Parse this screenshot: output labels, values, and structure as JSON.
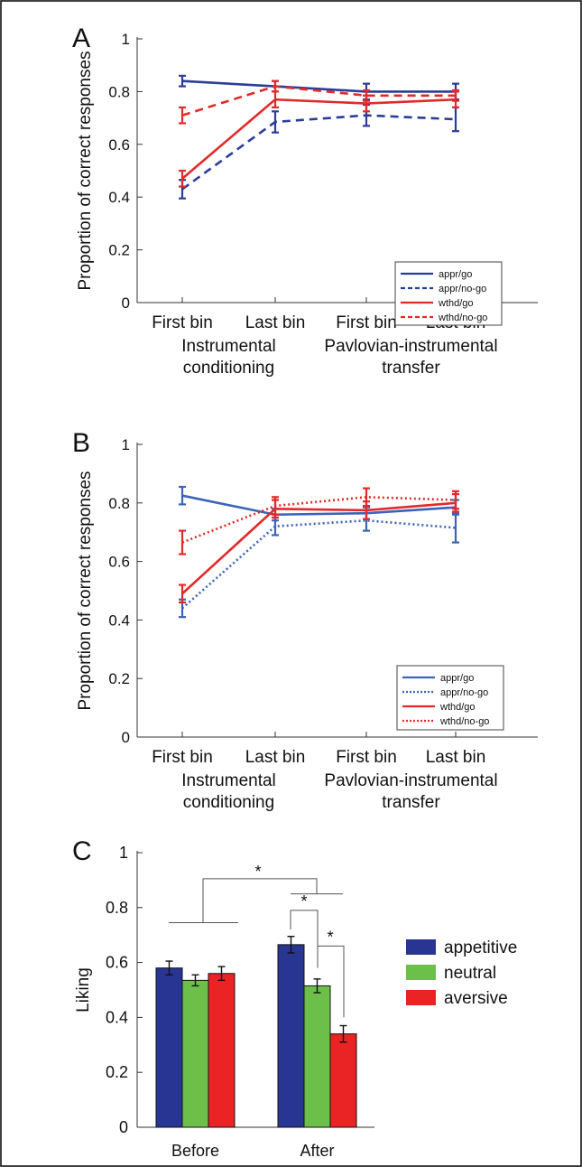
{
  "chart_data": [
    {
      "panel_label": "A",
      "type": "line",
      "ylabel": "Proportion of correct responses",
      "ylim": [
        0,
        1
      ],
      "yticks": [
        0,
        0.2,
        0.4,
        0.6,
        0.8,
        1
      ],
      "yticklabels": [
        "0",
        "0.2",
        "0.4",
        "0.6",
        "0.8",
        "1"
      ],
      "categories": [
        "First bin",
        "Last bin",
        "First bin",
        "Last bin"
      ],
      "groups": [
        {
          "label": "Instrumental\nconditioning"
        },
        {
          "label": "Pavlovian-instrumental\ntransfer"
        }
      ],
      "legend_position": "bottom-right",
      "series": [
        {
          "name": "appr/go",
          "color": "#2b3d9a",
          "style": "solid",
          "values": [
            0.84,
            0.82,
            0.8,
            0.8
          ],
          "errors": [
            0.02,
            0.02,
            0.03,
            0.03
          ]
        },
        {
          "name": "appr/no-go",
          "color": "#2b3d9a",
          "style": "dashed",
          "values": [
            0.43,
            0.685,
            0.71,
            0.695
          ],
          "errors": [
            0.035,
            0.04,
            0.04,
            0.045
          ]
        },
        {
          "name": "wthd/go",
          "color": "#e12a2a",
          "style": "solid",
          "values": [
            0.47,
            0.77,
            0.755,
            0.77
          ],
          "errors": [
            0.03,
            0.03,
            0.03,
            0.03
          ]
        },
        {
          "name": "wthd/no-go",
          "color": "#e12a2a",
          "style": "dashed",
          "values": [
            0.71,
            0.82,
            0.785,
            0.785
          ],
          "errors": [
            0.03,
            0.02,
            0.02,
            0.02
          ]
        }
      ]
    },
    {
      "panel_label": "B",
      "type": "line",
      "ylabel": "Proportion of correct responses",
      "ylim": [
        0,
        1
      ],
      "yticks": [
        0,
        0.2,
        0.4,
        0.6,
        0.8,
        1
      ],
      "yticklabels": [
        "0",
        "0.2",
        "0.4",
        "0.6",
        "0.8",
        "1"
      ],
      "categories": [
        "First bin",
        "Last bin",
        "First bin",
        "Last bin"
      ],
      "groups": [
        {
          "label": "Instrumental\nconditioning"
        },
        {
          "label": "Pavlovian-instrumental\ntransfer"
        }
      ],
      "legend_position": "bottom-right",
      "series": [
        {
          "name": "appr/go",
          "color": "#3d63b8",
          "style": "solid",
          "values": [
            0.825,
            0.76,
            0.765,
            0.785
          ],
          "errors": [
            0.03,
            0.02,
            0.02,
            0.025
          ]
        },
        {
          "name": "appr/no-go",
          "color": "#3d63b8",
          "style": "dotted",
          "values": [
            0.44,
            0.72,
            0.74,
            0.715
          ],
          "errors": [
            0.03,
            0.03,
            0.035,
            0.05
          ]
        },
        {
          "name": "wthd/go",
          "color": "#e12a2a",
          "style": "solid",
          "values": [
            0.49,
            0.78,
            0.775,
            0.8
          ],
          "errors": [
            0.03,
            0.03,
            0.03,
            0.03
          ]
        },
        {
          "name": "wthd/no-go",
          "color": "#e12a2a",
          "style": "dotted",
          "values": [
            0.665,
            0.79,
            0.82,
            0.81
          ],
          "errors": [
            0.04,
            0.03,
            0.03,
            0.03
          ]
        }
      ]
    },
    {
      "panel_label": "C",
      "type": "bar",
      "ylabel": "Liking",
      "ylim": [
        0,
        1
      ],
      "yticks": [
        0,
        0.2,
        0.4,
        0.6,
        0.8,
        1
      ],
      "yticklabels": [
        "0",
        "0.2",
        "0.4",
        "0.6",
        "0.8",
        "1"
      ],
      "categories": [
        "Before",
        "After"
      ],
      "legend_position": "right",
      "series": [
        {
          "name": "appetitive",
          "color": "#283593",
          "values": [
            0.58,
            0.665
          ],
          "errors": [
            0.025,
            0.03
          ]
        },
        {
          "name": "neutral",
          "color": "#6cc04a",
          "values": [
            0.535,
            0.515
          ],
          "errors": [
            0.02,
            0.025
          ]
        },
        {
          "name": "aversive",
          "color": "#ea2424",
          "values": [
            0.56,
            0.34
          ],
          "errors": [
            0.025,
            0.03
          ]
        }
      ],
      "significance_marks": [
        {
          "label": "*",
          "between": "Before vs After"
        },
        {
          "label": "*",
          "between": "After appetitive vs neutral"
        },
        {
          "label": "*",
          "between": "After neutral vs aversive"
        }
      ]
    }
  ]
}
